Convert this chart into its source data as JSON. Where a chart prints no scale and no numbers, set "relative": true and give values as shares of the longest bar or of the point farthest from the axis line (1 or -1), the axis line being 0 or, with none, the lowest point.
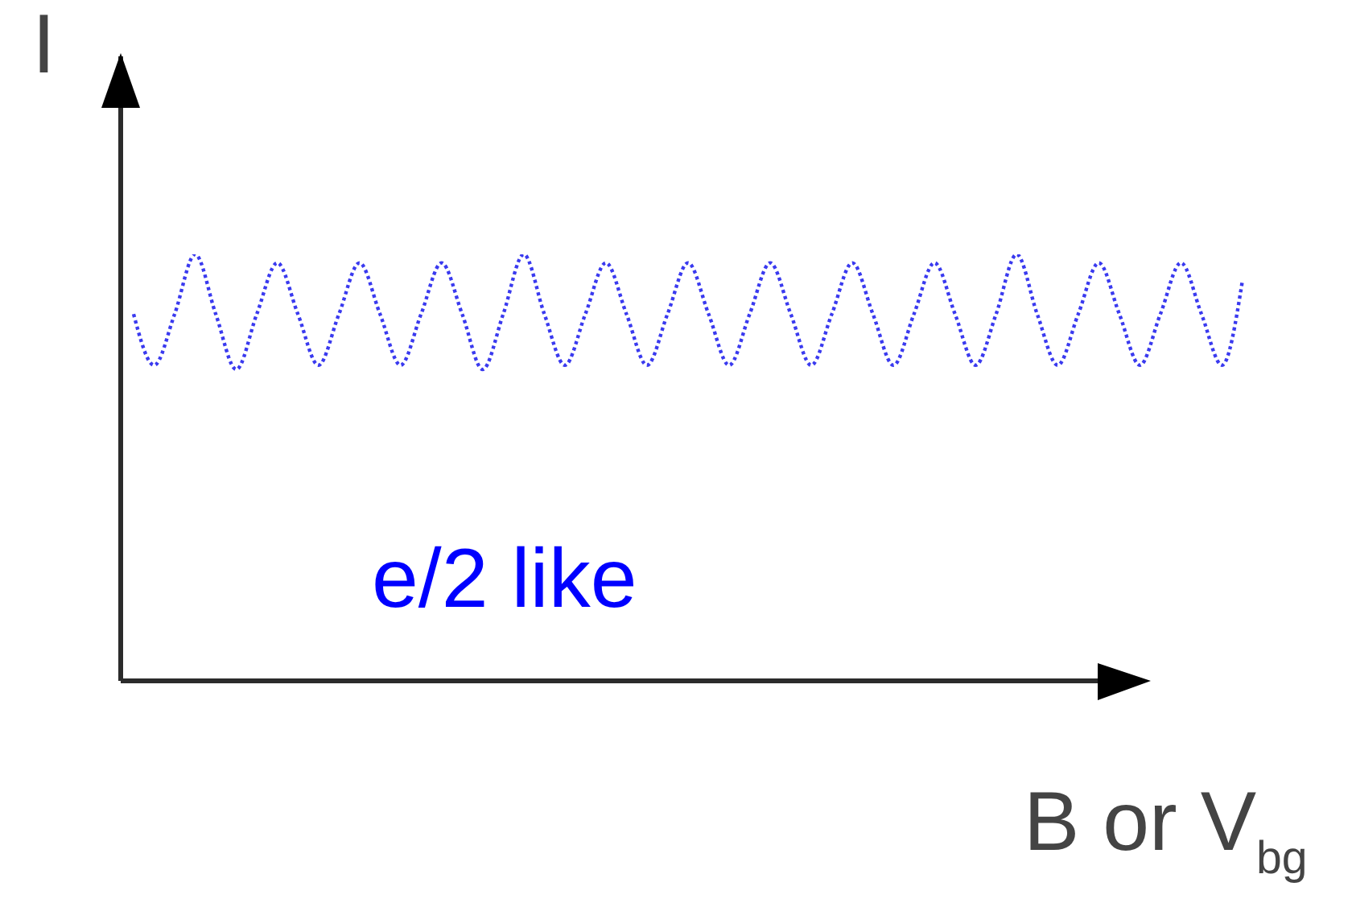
{
  "chart_data": {
    "type": "line",
    "xlabel": "B or V$_{bg}$",
    "ylabel": "I",
    "annotations": [
      "e/2 like"
    ],
    "categories": [
      null,
      null,
      null,
      null,
      null,
      null,
      null,
      null,
      null,
      null,
      null,
      null,
      null,
      null,
      null,
      null,
      null,
      null,
      null,
      null,
      null,
      null,
      null,
      null,
      null,
      null,
      null,
      null,
      null,
      null,
      null,
      null,
      null,
      null,
      null,
      null,
      null,
      null,
      null,
      null,
      null,
      null,
      null,
      null,
      null,
      null,
      null,
      null,
      null,
      null,
      null,
      null,
      null,
      null,
      null
    ],
    "values": [
      0.86,
      0.74,
      0.86,
      1,
      0.86,
      0.73,
      0.86,
      0.98,
      0.86,
      0.74,
      0.86,
      0.98,
      0.86,
      0.74,
      0.86,
      0.98,
      0.86,
      0.73,
      0.86,
      1,
      0.86,
      0.74,
      0.86,
      0.98,
      0.86,
      0.74,
      0.86,
      0.98,
      0.86,
      0.74,
      0.86,
      0.98,
      0.86,
      0.74,
      0.86,
      0.98,
      0.86,
      0.74,
      0.86,
      0.98,
      0.86,
      0.74,
      0.86,
      1,
      0.86,
      0.74,
      0.86,
      0.98,
      0.86,
      0.74,
      0.86,
      0.98,
      0.86,
      0.74,
      0.94
    ],
    "color": "#3a3aef",
    "relative": true,
    "line_style": "dotted",
    "marker": "none"
  }
}
